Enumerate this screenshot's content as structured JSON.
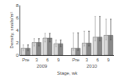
{
  "chart_data": {
    "type": "bar",
    "xlabel": "Stage, wk",
    "ylabel": "Density, snails/m²",
    "categories": [
      "Pre",
      "3",
      "6",
      "9",
      "Pre",
      "3",
      "6",
      "9"
    ],
    "groups": [
      "2009",
      "2010"
    ],
    "series": [
      {
        "color": "#d8d8d8",
        "values": [
          1.1,
          2.05,
          2.75,
          1.85,
          1.1,
          1.95,
          2.9,
          3.2
        ],
        "err_low": [
          0.35,
          0.55,
          0.6,
          0.45,
          0.3,
          0.45,
          0.6,
          0.7
        ],
        "err_high": [
          0.55,
          0.6,
          0.75,
          0.6,
          2.5,
          1.9,
          3.3,
          2.6
        ]
      },
      {
        "color": "#888888",
        "values": [
          1.1,
          2.05,
          2.75,
          1.85,
          1.1,
          1.95,
          2.9,
          3.2
        ],
        "err_low": [
          0.35,
          0.55,
          0.6,
          0.45,
          0.3,
          0.45,
          0.6,
          0.7
        ],
        "err_high": [
          0.55,
          0.6,
          0.75,
          0.6,
          2.5,
          1.9,
          3.3,
          2.6
        ]
      }
    ],
    "ylim": [
      0,
      8
    ],
    "yticks": [
      0,
      2,
      4,
      6,
      8
    ],
    "grid": false
  }
}
